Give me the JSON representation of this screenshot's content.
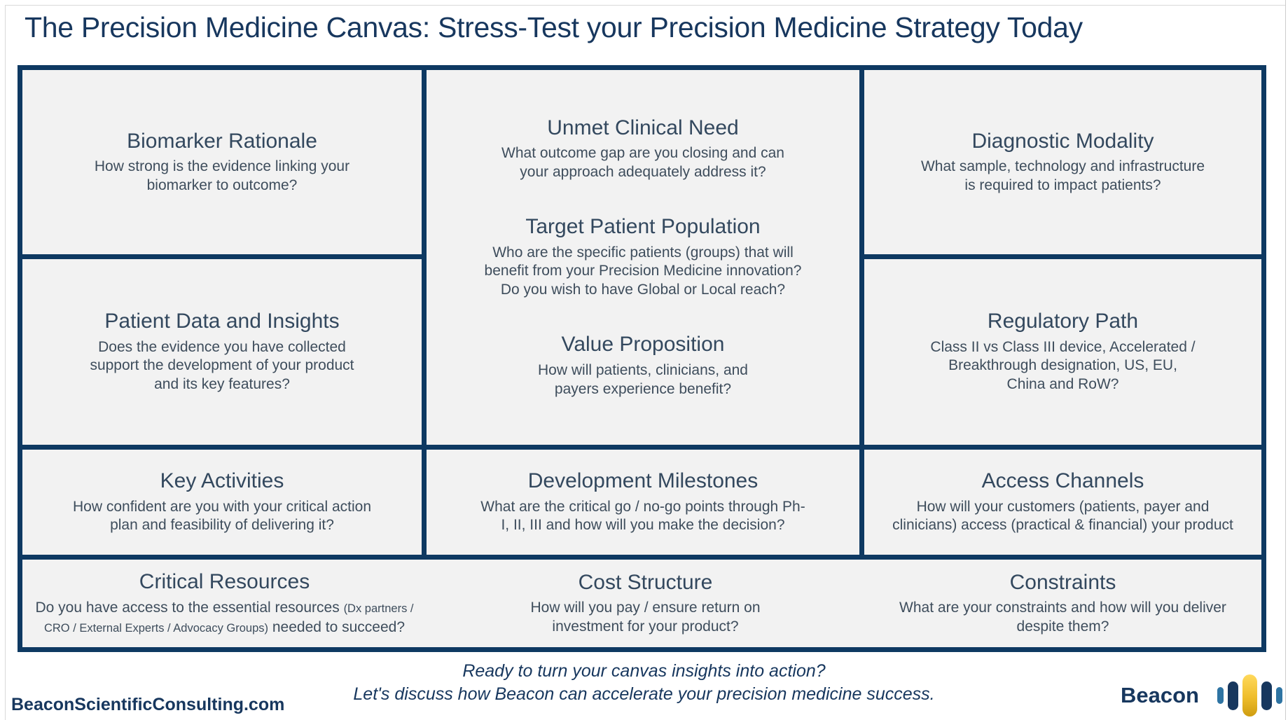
{
  "page": {
    "title": "The Precision Medicine Canvas: Stress-Test your Precision Medicine Strategy Today"
  },
  "cells": {
    "biomarker": {
      "title": "Biomarker Rationale",
      "desc": "How strong is the evidence linking your\nbiomarker to outcome?"
    },
    "unmet": {
      "title": "Unmet Clinical Need",
      "desc": "What outcome gap are you closing and can\nyour approach adequately address it?"
    },
    "target": {
      "title": "Target Patient Population",
      "desc": "Who are the specific patients (groups) that will\nbenefit from your Precision Medicine innovation?\nDo you wish to have Global or Local reach?"
    },
    "value": {
      "title": "Value Proposition",
      "desc": "How will patients, clinicians, and\npayers experience benefit?"
    },
    "diagnostic": {
      "title": "Diagnostic Modality",
      "desc": "What sample, technology and infrastructure\nis required to impact patients?"
    },
    "patient_data": {
      "title": "Patient Data and Insights",
      "desc": "Does the evidence you have collected\nsupport the development of your product\nand its key features?"
    },
    "regulatory": {
      "title": "Regulatory Path",
      "desc": "Class II vs Class III device, Accelerated /\nBreakthrough designation, US, EU,\nChina and RoW?"
    },
    "key_activities": {
      "title": "Key Activities",
      "desc": "How confident are you with your critical action\nplan and feasibility of delivering it?"
    },
    "milestones": {
      "title": "Development Milestones",
      "desc": "What are the critical go / no-go points through Ph-\nI, II, III and how will you make the decision?"
    },
    "access": {
      "title": "Access Channels",
      "desc": "How will your customers (patients, payer and\nclinicians) access (practical & financial) your product"
    },
    "critical": {
      "title": "Critical Resources",
      "desc_parts": [
        {
          "text": "Do you have access to the essential resources ",
          "size": "normal"
        },
        {
          "text": "(Dx partners / CRO / External Experts / Advocacy Groups)",
          "size": "small"
        },
        {
          "text": " needed to succeed?",
          "size": "normal"
        }
      ]
    },
    "cost": {
      "title": "Cost Structure",
      "desc": "How will you pay / ensure return on\ninvestment for your product?"
    },
    "constraints": {
      "title": "Constraints",
      "desc": "What are your constraints and how will you deliver\ndespite them?"
    }
  },
  "footer": {
    "cta_line1": "Ready to turn your canvas insights into action?",
    "cta_line2": "Let's discuss how Beacon can accelerate your precision medicine success.",
    "website": "BeaconScientificConsulting.com",
    "brand": "Beacon"
  },
  "colors": {
    "navy": "#17375e",
    "border": "#0e3962",
    "cellbg": "#f2f2f2",
    "celltitle": "#33485e",
    "celldesc": "#3e4d5c",
    "steel": "#2e74a3",
    "gold-top": "#ffd95c",
    "gold-bottom": "#cf9d10"
  }
}
